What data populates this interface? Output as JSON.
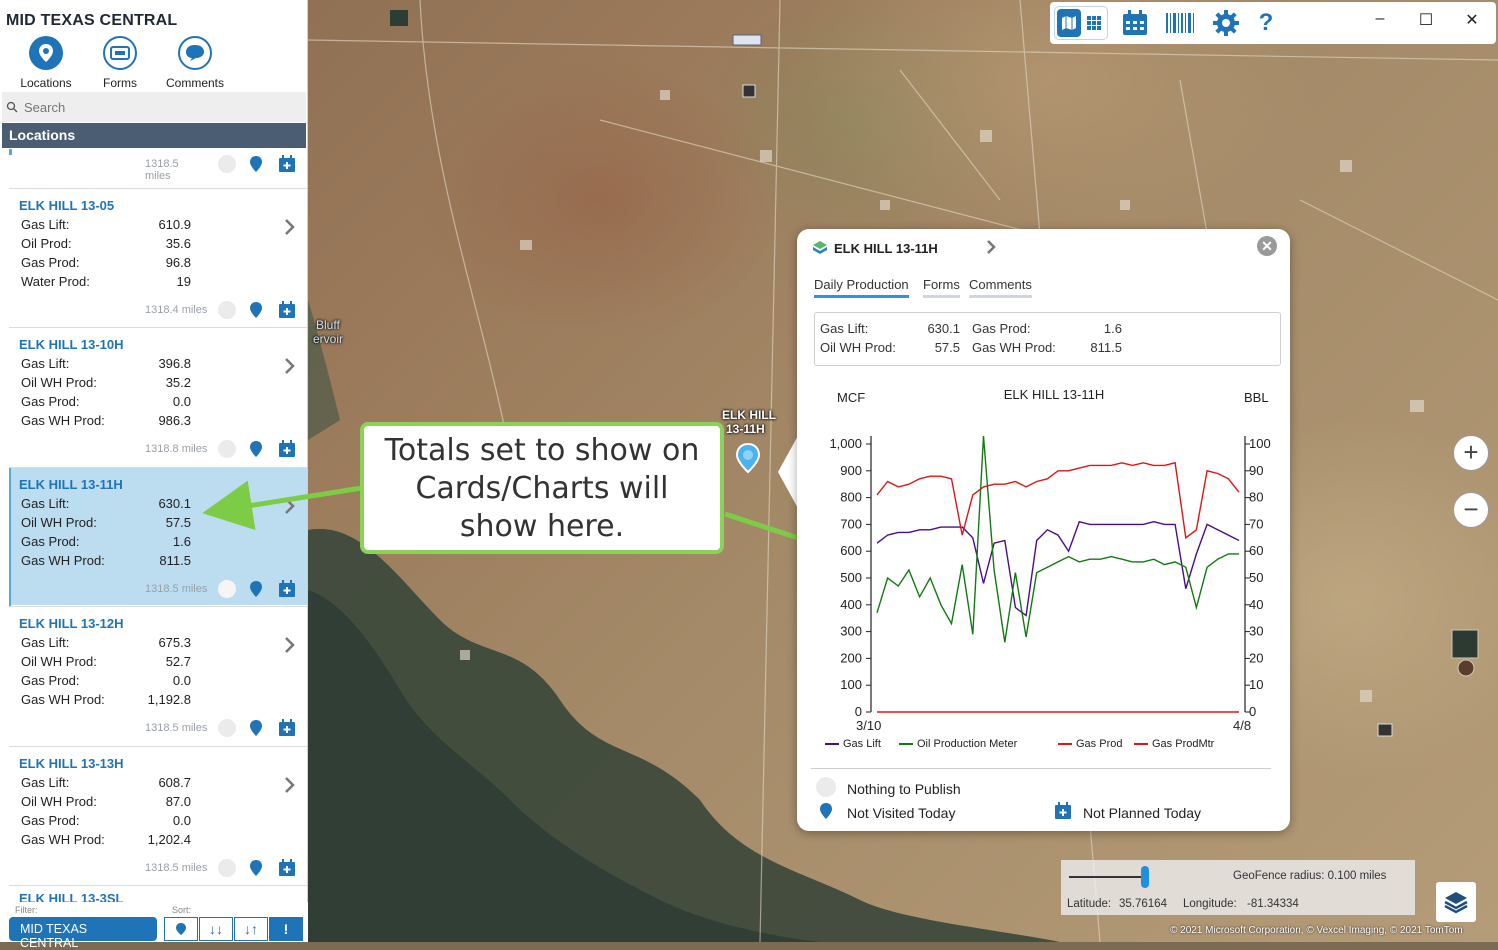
{
  "app": {
    "title": "MID TEXAS CENTRAL"
  },
  "nav": [
    {
      "label": "Locations",
      "icon": "location-pin-icon"
    },
    {
      "label": "Forms",
      "icon": "forms-icon"
    },
    {
      "label": "Comments",
      "icon": "comment-bubble-icon"
    }
  ],
  "search": {
    "placeholder": "Search"
  },
  "locations_header": "Locations",
  "first_card_miles": "1318.5 miles",
  "cards": [
    {
      "title": "ELK HILL 13-05",
      "rows": [
        [
          "Gas Lift:",
          "610.9"
        ],
        [
          "Oil Prod:",
          "35.6"
        ],
        [
          "Gas Prod:",
          "96.8"
        ],
        [
          "Water Prod:",
          "19"
        ]
      ],
      "miles": "1318.4 miles"
    },
    {
      "title": "ELK HILL 13-10H",
      "rows": [
        [
          "Gas Lift:",
          "396.8"
        ],
        [
          "Oil WH Prod:",
          "35.2"
        ],
        [
          "Gas Prod:",
          "0.0"
        ],
        [
          "Gas WH Prod:",
          "986.3"
        ]
      ],
      "miles": "1318.8 miles"
    },
    {
      "title": "ELK HILL 13-11H",
      "rows": [
        [
          "Gas Lift:",
          "630.1"
        ],
        [
          "Oil WH Prod:",
          "57.5"
        ],
        [
          "Gas Prod:",
          "1.6"
        ],
        [
          "Gas WH Prod:",
          "811.5"
        ]
      ],
      "miles": "1318.5 miles"
    },
    {
      "title": "ELK HILL 13-12H",
      "rows": [
        [
          "Gas Lift:",
          "675.3"
        ],
        [
          "Oil WH Prod:",
          "52.7"
        ],
        [
          "Gas Prod:",
          "0.0"
        ],
        [
          "Gas WH Prod:",
          "1,192.8"
        ]
      ],
      "miles": "1318.5 miles"
    },
    {
      "title": "ELK HILL 13-13H",
      "rows": [
        [
          "Gas Lift:",
          "608.7"
        ],
        [
          "Oil WH Prod:",
          "87.0"
        ],
        [
          "Gas Prod:",
          "0.0"
        ],
        [
          "Gas WH Prod:",
          "1,202.4"
        ]
      ],
      "miles": "1318.5 miles"
    },
    {
      "title": "ELK HILL 13-3SL",
      "rows": [],
      "miles": ""
    }
  ],
  "filter": {
    "label": "Filter:",
    "value": "MID TEXAS CENTRAL",
    "sort_label": "Sort:"
  },
  "map": {
    "well_label_line1": "ELK HILL",
    "well_label_line2": "13-11H",
    "lake_label_line1": "Bluff",
    "lake_label_line2": "ervoir"
  },
  "callout": {
    "line1": "Totals set to show on",
    "line2": "Cards/Charts will",
    "line3": "show here."
  },
  "popup": {
    "title": "ELK HILL 13-11H",
    "tabs": [
      "Daily Production",
      "Forms",
      "Comments"
    ],
    "totals": [
      {
        "label": "Gas Lift:",
        "value": "630.1"
      },
      {
        "label": "Gas Prod:",
        "value": "1.6"
      },
      {
        "label": "Oil WH Prod:",
        "value": "57.5"
      },
      {
        "label": "Gas WH Prod:",
        "value": "811.5"
      }
    ],
    "status": {
      "publish": "Nothing to Publish",
      "visited": "Not Visited Today",
      "planned": "Not Planned Today"
    }
  },
  "chart_data": {
    "type": "line",
    "title": "ELK HILL 13-11H",
    "ylabel_left": "MCF",
    "ylabel_right": "BBL",
    "ylim_left": [
      0,
      1000
    ],
    "ylim_right": [
      0,
      100
    ],
    "yticks_left": [
      "0",
      "100",
      "200",
      "300",
      "400",
      "500",
      "600",
      "700",
      "800",
      "900",
      "1,000"
    ],
    "yticks_right": [
      "0",
      "10",
      "20",
      "30",
      "40",
      "50",
      "60",
      "70",
      "80",
      "90",
      "100"
    ],
    "x_start_label": "3/10",
    "x_end_label": "4/8",
    "legend_position": "bottom",
    "series": [
      {
        "name": "Gas Lift",
        "axis": "left",
        "color": "#4b0c8c",
        "values": [
          630,
          660,
          670,
          670,
          680,
          680,
          690,
          690,
          690,
          650,
          480,
          630,
          640,
          390,
          360,
          640,
          680,
          660,
          600,
          710,
          700,
          700,
          700,
          700,
          700,
          700,
          710,
          700,
          700,
          460,
          590,
          700,
          680,
          660,
          640
        ]
      },
      {
        "name": "Oil Production Meter",
        "axis": "right",
        "color": "#117a11",
        "values": [
          37,
          50,
          47,
          53,
          43,
          50,
          40,
          33,
          55,
          29,
          103,
          53,
          26,
          52,
          28,
          52,
          54,
          56,
          58,
          56,
          57,
          57,
          58,
          57,
          56,
          56,
          57,
          55,
          56,
          54,
          39,
          54,
          57,
          59,
          59
        ]
      },
      {
        "name": "Gas Prod",
        "axis": "left",
        "color": "#e01515",
        "values": [
          0,
          0,
          0,
          0,
          0,
          0,
          0,
          0,
          0,
          0,
          0,
          0,
          0,
          0,
          0,
          0,
          0,
          0,
          0,
          0,
          0,
          0,
          0,
          0,
          0,
          0,
          0,
          0,
          0,
          0,
          0,
          0,
          0,
          0,
          0
        ]
      },
      {
        "name": "Gas ProdMtr",
        "axis": "right",
        "color": "#e01515",
        "values": [
          81,
          86,
          84,
          85,
          87,
          88,
          88,
          87,
          66,
          81,
          84,
          85,
          85,
          86,
          84,
          86,
          87,
          90,
          90,
          91,
          92,
          92,
          92,
          93,
          92,
          93,
          92,
          92,
          93,
          65,
          68,
          90,
          89,
          87,
          82
        ]
      }
    ]
  },
  "geofence": {
    "radius_text": "GeoFence radius: 0.100 miles",
    "lat_label": "Latitude:",
    "lat_value": "35.76164",
    "lon_label": "Longitude:",
    "lon_value": "-81.34334"
  },
  "copyright": "© 2021 Microsoft Corporation, © Vexcel Imaging, © 2021 TomTom",
  "colors": {
    "accent": "#1f73b7",
    "header": "#4a5d72",
    "callout_border": "#8cd15a",
    "selected_card": "#bcdcf0"
  }
}
